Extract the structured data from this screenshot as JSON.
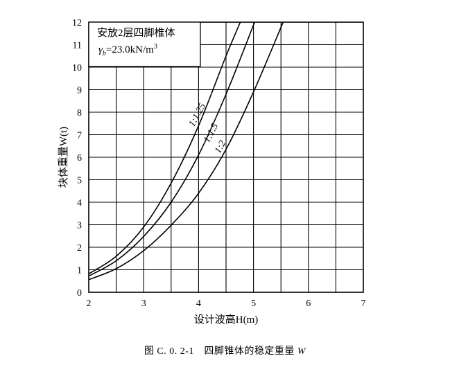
{
  "chart_data": {
    "type": "line",
    "title_lines": [
      "安放2层四脚椎体"
    ],
    "legend_box": {
      "line1": "安放2层四脚椎体",
      "line2_symbol": "γ",
      "line2_sub": "b",
      "line2_value": "=23.0kN/m",
      "line2_sup": "3"
    },
    "xlabel": "设计波高H(m)",
    "ylabel": "块体重量W(t)",
    "xlim": [
      2,
      7
    ],
    "ylim": [
      0,
      12
    ],
    "xticks": [
      "2",
      "3",
      "4",
      "5",
      "6",
      "7"
    ],
    "yticks": [
      "0",
      "1",
      "2",
      "3",
      "4",
      "5",
      "6",
      "7",
      "8",
      "9",
      "10",
      "11",
      "12"
    ],
    "grid": true,
    "series": [
      {
        "name": "1:1.25",
        "x": [
          2.0,
          2.5,
          3.0,
          3.5,
          4.0,
          4.5,
          4.76
        ],
        "y": [
          0.82,
          1.6,
          2.9,
          4.85,
          7.4,
          10.5,
          12.0
        ]
      },
      {
        "name": "1:1.5",
        "x": [
          2.0,
          2.5,
          3.0,
          3.5,
          4.0,
          4.5,
          5.02
        ],
        "y": [
          0.72,
          1.4,
          2.48,
          4.0,
          6.1,
          8.8,
          12.0
        ]
      },
      {
        "name": "1:2",
        "x": [
          2.0,
          2.5,
          3.0,
          3.5,
          4.0,
          4.5,
          5.0,
          5.54
        ],
        "y": [
          0.56,
          1.05,
          1.85,
          2.98,
          4.4,
          6.35,
          8.9,
          12.0
        ]
      }
    ]
  },
  "caption": {
    "text": "图 C. 0. 2-1　四脚锥体的稳定重量 ",
    "var": "W"
  }
}
